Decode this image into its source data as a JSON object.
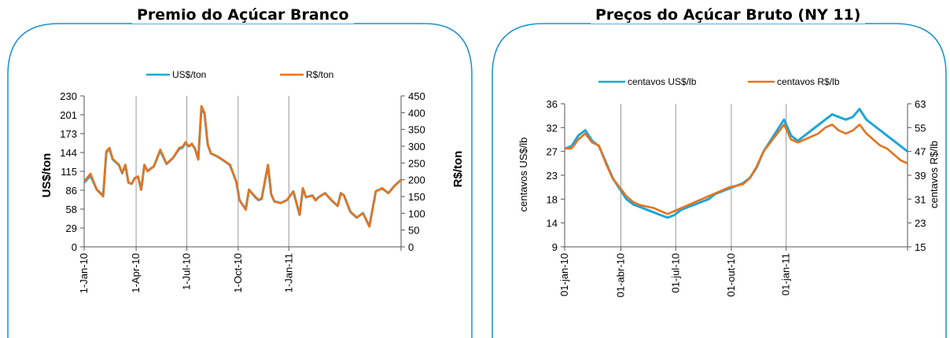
{
  "colors": {
    "frame": "#1b8fd2",
    "usd": "#1ca6d8",
    "brl": "#e8731e",
    "grid": "#9a9a9a",
    "text": "#000000"
  },
  "chart_data": [
    {
      "title": "Premio do Açúcar Branco",
      "type": "line",
      "y_label": "US$/ton",
      "y2_label": "R$/ton",
      "y_ticks": [
        "230",
        "201",
        "173",
        "144",
        "115",
        "86",
        "58",
        "29",
        "0"
      ],
      "y2_ticks": [
        "450",
        "400",
        "350",
        "300",
        "250",
        "200",
        "150",
        "100",
        "50",
        "0"
      ],
      "x_ticks": [
        "1-Jan-10",
        "1-Apr-10",
        "1-Jul-10",
        "1-Oct-10",
        "1-Jan-11"
      ],
      "ylim": [
        0,
        258.7
      ],
      "y2lim": [
        0,
        450
      ],
      "legend": [
        "US$/ton",
        "R$/ton"
      ],
      "legend_position": "top",
      "grid": "vertical",
      "series": [
        {
          "name": "US$/ton",
          "axis": "left",
          "x": [
            0,
            10,
            20,
            30,
            35,
            40,
            45,
            55,
            60,
            65,
            70,
            75,
            80,
            85,
            90,
            95,
            100,
            110,
            120,
            130,
            140,
            150,
            155,
            160,
            165,
            170,
            175,
            180,
            185,
            190,
            195,
            200,
            210,
            220,
            230,
            240,
            245,
            250,
            255,
            260,
            270,
            275,
            280,
            290,
            295,
            300,
            310,
            320,
            330,
            340,
            345,
            350,
            360,
            365,
            370,
            380,
            390,
            400,
            405,
            410,
            420,
            430,
            440,
            450,
            460,
            470,
            480,
            490,
            500
          ],
          "y": [
            110,
            122,
            98,
            88,
            162,
            168,
            150,
            140,
            126,
            140,
            110,
            108,
            118,
            120,
            98,
            140,
            130,
            138,
            165,
            142,
            152,
            168,
            170,
            178,
            172,
            176,
            168,
            150,
            238,
            228,
            175,
            160,
            155,
            148,
            140,
            112,
            80,
            72,
            65,
            98,
            85,
            80,
            82,
            140,
            90,
            78,
            75,
            80,
            95,
            55,
            100,
            85,
            88,
            80,
            85,
            92,
            80,
            70,
            92,
            88,
            60,
            50,
            58,
            35,
            95,
            100,
            92,
            105,
            115
          ]
        },
        {
          "name": "R$/ton",
          "axis": "right",
          "x": [
            0,
            10,
            20,
            30,
            35,
            40,
            45,
            55,
            60,
            65,
            70,
            75,
            80,
            85,
            90,
            95,
            100,
            110,
            120,
            130,
            140,
            150,
            155,
            160,
            165,
            170,
            175,
            180,
            185,
            190,
            195,
            200,
            210,
            220,
            230,
            240,
            245,
            250,
            255,
            260,
            270,
            275,
            280,
            290,
            295,
            300,
            310,
            320,
            330,
            340,
            345,
            350,
            360,
            365,
            370,
            380,
            390,
            400,
            405,
            410,
            420,
            430,
            440,
            450,
            460,
            470,
            480,
            490,
            500
          ],
          "y": [
            195,
            218,
            170,
            150,
            285,
            295,
            262,
            245,
            220,
            245,
            192,
            188,
            205,
            210,
            170,
            245,
            225,
            240,
            290,
            248,
            265,
            295,
            298,
            312,
            300,
            308,
            292,
            260,
            420,
            400,
            305,
            278,
            270,
            258,
            245,
            195,
            140,
            125,
            110,
            170,
            150,
            140,
            145,
            245,
            158,
            135,
            130,
            140,
            165,
            95,
            175,
            148,
            152,
            138,
            148,
            160,
            140,
            122,
            160,
            152,
            105,
            88,
            100,
            60,
            165,
            175,
            160,
            182,
            200
          ]
        }
      ]
    },
    {
      "title": "Preços do Açúcar Bruto (NY 11)",
      "type": "line",
      "y_label": "centavos US$/lb",
      "y2_label": "centavos R$/lb",
      "y_ticks": [
        "36",
        "32",
        "27",
        "23",
        "18",
        "14",
        "9"
      ],
      "y2_ticks": [
        "63",
        "55",
        "47",
        "39",
        "31",
        "23",
        "15"
      ],
      "x_ticks": [
        "01-jan-10",
        "01-abr-10",
        "01-jul-10",
        "01-out-10",
        "01-jan-11"
      ],
      "ylim": [
        9,
        36
      ],
      "y2lim": [
        15,
        63
      ],
      "legend": [
        "centavos US$/lb",
        "centavos R$/lb"
      ],
      "legend_position": "top",
      "grid": "vertical",
      "series": [
        {
          "name": "centavos US$/lb",
          "axis": "left",
          "x": [
            0,
            10,
            20,
            30,
            40,
            50,
            60,
            70,
            80,
            90,
            100,
            110,
            120,
            130,
            140,
            150,
            160,
            170,
            180,
            190,
            200,
            210,
            220,
            230,
            240,
            250,
            260,
            270,
            280,
            290,
            300,
            310,
            320,
            330,
            340,
            350,
            360,
            370,
            380,
            390,
            400,
            410,
            420,
            430,
            440,
            450,
            460,
            470,
            480,
            490,
            500
          ],
          "y": [
            27.5,
            28,
            30,
            31,
            29,
            28,
            25,
            22,
            20,
            18,
            17,
            16.5,
            16,
            15.5,
            15,
            14.5,
            15,
            16,
            16.5,
            17,
            17.5,
            18,
            19,
            19.5,
            20,
            20.5,
            21,
            22,
            24,
            27,
            29,
            31,
            33,
            30,
            29,
            30,
            31,
            32,
            33,
            34,
            33.5,
            33,
            33.5,
            35,
            33,
            32,
            31,
            30,
            29,
            28,
            27
          ]
        },
        {
          "name": "centavos R$/lb",
          "axis": "right",
          "x": [
            0,
            10,
            20,
            30,
            40,
            50,
            60,
            70,
            80,
            90,
            100,
            110,
            120,
            130,
            140,
            150,
            160,
            170,
            180,
            190,
            200,
            210,
            220,
            230,
            240,
            250,
            260,
            270,
            280,
            290,
            300,
            310,
            320,
            330,
            340,
            350,
            360,
            370,
            380,
            390,
            400,
            410,
            420,
            430,
            440,
            450,
            460,
            470,
            480,
            490,
            500
          ],
          "y": [
            48,
            48,
            51,
            53,
            50,
            49,
            43,
            38,
            35,
            32,
            30,
            29,
            28.5,
            28,
            27,
            26,
            27,
            28,
            29,
            30,
            31,
            32,
            33,
            34,
            35,
            35.5,
            36,
            38,
            42,
            47,
            50,
            53,
            56,
            51,
            50,
            51,
            52,
            53,
            55,
            56,
            54,
            53,
            54,
            56,
            53,
            51,
            49,
            48,
            46,
            44,
            43
          ]
        }
      ]
    }
  ]
}
